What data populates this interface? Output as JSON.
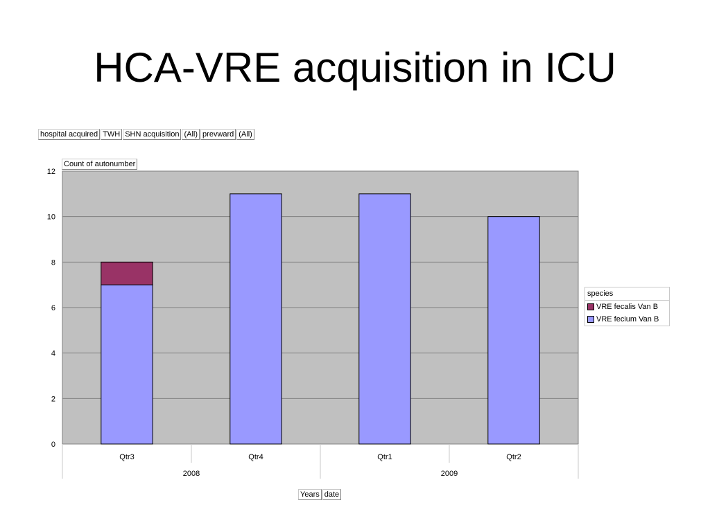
{
  "title": "HCA-VRE acquisition in ICU",
  "page_fields": [
    {
      "label": "hospital acquired"
    },
    {
      "label": "TWH"
    },
    {
      "label": "SHN acquisition"
    },
    {
      "label": "(All)"
    },
    {
      "label": "prevward"
    },
    {
      "label": "(All)"
    }
  ],
  "data_field": "Count of autonumber",
  "x_fields": [
    {
      "label": "Years"
    },
    {
      "label": "date"
    }
  ],
  "colors": {
    "plot_bg": "#c0c0c0",
    "fecalis": "#993366",
    "fecium": "#9999ff",
    "grid": "#808080"
  },
  "chart_data": {
    "type": "bar",
    "stacked": true,
    "title": "",
    "xlabel": "",
    "ylabel": "",
    "ylim": [
      0,
      12
    ],
    "yticks": [
      0,
      2,
      4,
      6,
      8,
      10,
      12
    ],
    "grid": true,
    "legend_position": "right",
    "legend_title": "species",
    "categories": [
      "Qtr3",
      "Qtr4",
      "Qtr1",
      "Qtr2"
    ],
    "groups": [
      {
        "label": "2008",
        "categories": [
          "Qtr3",
          "Qtr4"
        ]
      },
      {
        "label": "2009",
        "categories": [
          "Qtr1",
          "Qtr2"
        ]
      }
    ],
    "series": [
      {
        "name": "VRE fecalis Van B",
        "values": [
          1,
          0,
          0,
          0
        ]
      },
      {
        "name": "VRE fecium Van B",
        "values": [
          7,
          11,
          11,
          10
        ]
      }
    ]
  }
}
